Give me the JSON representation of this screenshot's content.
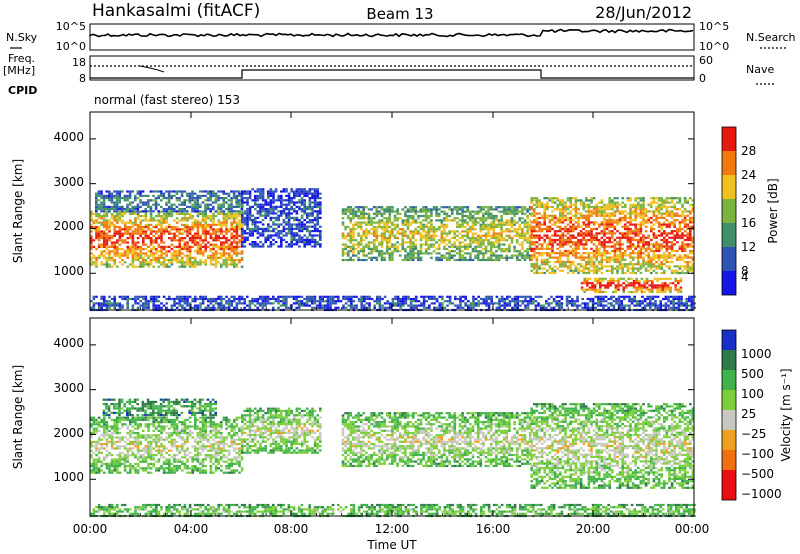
{
  "header": {
    "radar": "Hankasalmi (fitACF)",
    "beam": "Beam 13",
    "date": "28/Jun/2012"
  },
  "noise_panel": {
    "left_label": "N.Sky",
    "right_label": "N.Search",
    "left_ticks": [
      "10^5",
      "10^0"
    ],
    "right_ticks": [
      "10^5",
      "10^0"
    ]
  },
  "freq_panel": {
    "left_label_top": "Freq.",
    "left_label_unit": "[MHz]",
    "left_ticks": [
      "18",
      "8"
    ],
    "right_label": "Nave",
    "right_ticks": [
      "60",
      "0"
    ]
  },
  "cpid": {
    "label": "CPID",
    "mode": "normal (fast stereo) 153"
  },
  "x_axis": {
    "label": "Time UT",
    "ticks": [
      "00:00",
      "04:00",
      "08:00",
      "12:00",
      "16:00",
      "20:00",
      "00:00"
    ]
  },
  "chart_data": [
    {
      "type": "heatmap",
      "title": "",
      "xlabel": "Time UT",
      "ylabel": "Slant Range [km]",
      "xlim": [
        0,
        24
      ],
      "ylim": [
        180,
        4600
      ],
      "y_ticks": [
        "1000",
        "2000",
        "3000",
        "4000"
      ],
      "x_ticks": [
        "00:00",
        "04:00",
        "08:00",
        "12:00",
        "16:00",
        "20:00",
        "00:00"
      ],
      "colorbar": {
        "label": "Power [dB]",
        "tick_labels": [
          "4",
          "8",
          "12",
          "16",
          "20",
          "24",
          "28"
        ],
        "colors": [
          "#1616e6",
          "#2f55b4",
          "#3f8f6a",
          "#7ab43c",
          "#f0c020",
          "#f07a10",
          "#e81a10"
        ]
      },
      "regions": [
        {
          "t0": 0.0,
          "t1": 6.0,
          "r0": 1150,
          "r1": 2400,
          "level": 6
        },
        {
          "t0": 0.2,
          "t1": 6.0,
          "r0": 2400,
          "r1": 2850,
          "level": 2
        },
        {
          "t0": 6.0,
          "t1": 9.2,
          "r0": 1600,
          "r1": 2900,
          "level": 1
        },
        {
          "t0": 10.0,
          "t1": 17.5,
          "r0": 1300,
          "r1": 2500,
          "level": 4
        },
        {
          "t0": 17.5,
          "t1": 24.0,
          "r0": 1000,
          "r1": 2700,
          "level": 6
        },
        {
          "t0": 19.5,
          "t1": 23.5,
          "r0": 600,
          "r1": 900,
          "level": 7
        },
        {
          "t0": 0.0,
          "t1": 24.0,
          "r0": 180,
          "r1": 500,
          "level": 1
        }
      ]
    },
    {
      "type": "heatmap",
      "title": "",
      "xlabel": "Time UT",
      "ylabel": "Slant Range [km]",
      "xlim": [
        0,
        24
      ],
      "ylim": [
        180,
        4600
      ],
      "y_ticks": [
        "1000",
        "2000",
        "3000",
        "4000"
      ],
      "x_ticks": [
        "00:00",
        "04:00",
        "08:00",
        "12:00",
        "16:00",
        "20:00",
        "00:00"
      ],
      "colorbar": {
        "label": "Velocity [m s⁻¹]",
        "tick_labels": [
          "1000",
          "500",
          "100",
          "25",
          "−25",
          "−100",
          "−500",
          "−1000"
        ],
        "colors": [
          "#1a2fc8",
          "#2f7a4a",
          "#3fb24a",
          "#7ccf3a",
          "#c8c8c0",
          "#f0a020",
          "#f07010",
          "#e81010"
        ]
      },
      "regions": [
        {
          "t0": 0.0,
          "t1": 6.0,
          "r0": 1150,
          "r1": 2400,
          "level": 4
        },
        {
          "t0": 6.0,
          "t1": 9.2,
          "r0": 1600,
          "r1": 2600,
          "level": 4
        },
        {
          "t0": 10.0,
          "t1": 17.5,
          "r0": 1300,
          "r1": 2500,
          "level": 4
        },
        {
          "t0": 17.5,
          "t1": 24.0,
          "r0": 800,
          "r1": 2700,
          "level": 4
        },
        {
          "t0": 0.5,
          "t1": 5.0,
          "r0": 2450,
          "r1": 2800,
          "level": 2
        },
        {
          "t0": 0.0,
          "t1": 24.0,
          "r0": 180,
          "r1": 450,
          "level": 3
        }
      ]
    }
  ]
}
